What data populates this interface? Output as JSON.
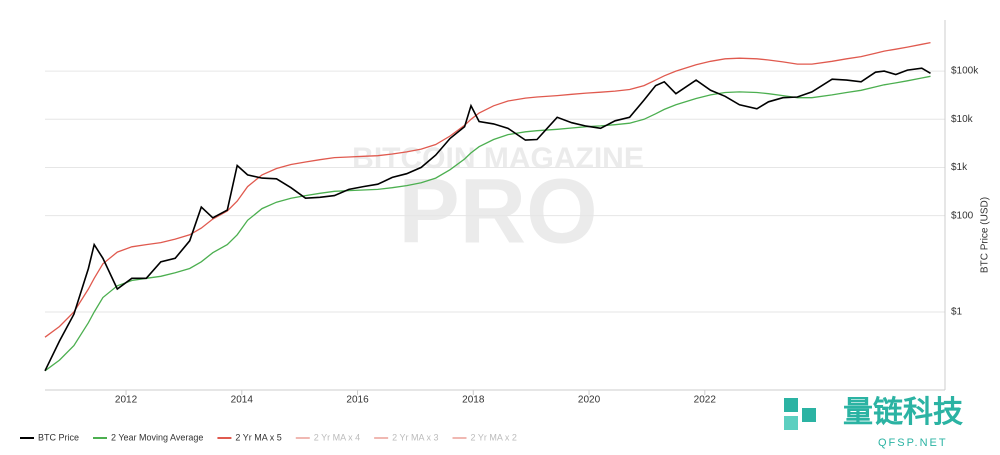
{
  "chart_data": {
    "type": "line",
    "y_axis_label": "BTC Price (USD)",
    "watermark": [
      "BITCOIN MAGAZINE",
      "PRO"
    ],
    "logo": {
      "name": "量链科技",
      "site": "QFSP.NET"
    },
    "log_y": true,
    "grid": true,
    "xlim": [
      2010.6,
      2026.15
    ],
    "xticks": [
      2012,
      2014,
      2016,
      2018,
      2020,
      2022
    ],
    "ylim": [
      0.024,
      1150000
    ],
    "yticks": [
      {
        "value": 1,
        "label": "$1"
      },
      {
        "value": 100,
        "label": "$100"
      },
      {
        "value": 1000,
        "label": "$1k"
      },
      {
        "value": 10000,
        "label": "$10k"
      },
      {
        "value": 100000,
        "label": "$100k"
      }
    ],
    "x": [
      2010.6,
      2010.85,
      2011.1,
      2011.35,
      2011.45,
      2011.6,
      2011.85,
      2012.1,
      2012.35,
      2012.6,
      2012.85,
      2013.1,
      2013.3,
      2013.5,
      2013.75,
      2013.92,
      2014.1,
      2014.35,
      2014.6,
      2014.85,
      2015.1,
      2015.35,
      2015.6,
      2015.85,
      2016.1,
      2016.35,
      2016.6,
      2016.85,
      2017.1,
      2017.35,
      2017.6,
      2017.85,
      2017.96,
      2018.1,
      2018.35,
      2018.6,
      2018.9,
      2019.1,
      2019.45,
      2019.7,
      2019.95,
      2020.2,
      2020.45,
      2020.7,
      2020.95,
      2021.15,
      2021.3,
      2021.5,
      2021.85,
      2022.1,
      2022.35,
      2022.6,
      2022.9,
      2023.1,
      2023.35,
      2023.6,
      2023.85,
      2024.2,
      2024.45,
      2024.7,
      2024.95,
      2025.1,
      2025.3,
      2025.5,
      2025.75,
      2025.9
    ],
    "series": [
      {
        "name": "BTC Price",
        "color": "#000000",
        "values": [
          0.06,
          0.25,
          0.9,
          8,
          25,
          13,
          3,
          5,
          5,
          11,
          13,
          30,
          150,
          90,
          130,
          1100,
          700,
          600,
          580,
          380,
          230,
          240,
          260,
          350,
          400,
          450,
          620,
          740,
          1000,
          1800,
          4000,
          7000,
          19000,
          9000,
          8000,
          6500,
          3700,
          3800,
          11000,
          8500,
          7200,
          6500,
          9300,
          11000,
          25000,
          50000,
          60000,
          34000,
          65000,
          40000,
          30000,
          20000,
          16500,
          23000,
          28000,
          29000,
          37000,
          68000,
          65000,
          60000,
          95000,
          100000,
          85000,
          105000,
          115000,
          90000
        ]
      },
      {
        "name": "2 Year Moving Average",
        "color": "#4caf50",
        "values": [
          0.06,
          0.1,
          0.2,
          0.6,
          1,
          2,
          3.5,
          4.5,
          5,
          5.5,
          6.5,
          8,
          11,
          17,
          25,
          40,
          80,
          140,
          190,
          230,
          260,
          290,
          320,
          330,
          340,
          350,
          380,
          420,
          480,
          600,
          900,
          1500,
          2000,
          2700,
          3800,
          4800,
          5500,
          5800,
          6200,
          6600,
          7000,
          7300,
          7700,
          8300,
          10000,
          13000,
          16000,
          20000,
          27000,
          32000,
          36000,
          37000,
          36000,
          34000,
          31000,
          28000,
          28000,
          32000,
          36000,
          40000,
          47000,
          52000,
          57000,
          63000,
          72000,
          78000
        ]
      },
      {
        "name": "2 Yr MA x 5",
        "color": "#e05a4f",
        "values": [
          0.3,
          0.5,
          1,
          3,
          5,
          10,
          17.5,
          22.5,
          25,
          27.5,
          32.5,
          40,
          55,
          85,
          125,
          200,
          400,
          700,
          950,
          1150,
          1300,
          1450,
          1600,
          1650,
          1700,
          1750,
          1900,
          2100,
          2400,
          3000,
          4500,
          7500,
          10000,
          13500,
          19000,
          24000,
          27500,
          29000,
          31000,
          33000,
          35000,
          36500,
          38500,
          41500,
          50000,
          65000,
          80000,
          100000,
          135000,
          160000,
          180000,
          185000,
          180000,
          170000,
          155000,
          140000,
          140000,
          160000,
          180000,
          200000,
          235000,
          260000,
          285000,
          315000,
          360000,
          390000
        ]
      }
    ],
    "inactive_legend": [
      {
        "name": "2 Yr MA x 4",
        "color": "#f0b8b2"
      },
      {
        "name": "2 Yr MA x 3",
        "color": "#f0b8b2"
      },
      {
        "name": "2 Yr MA x 2",
        "color": "#f0b8b2"
      }
    ]
  }
}
